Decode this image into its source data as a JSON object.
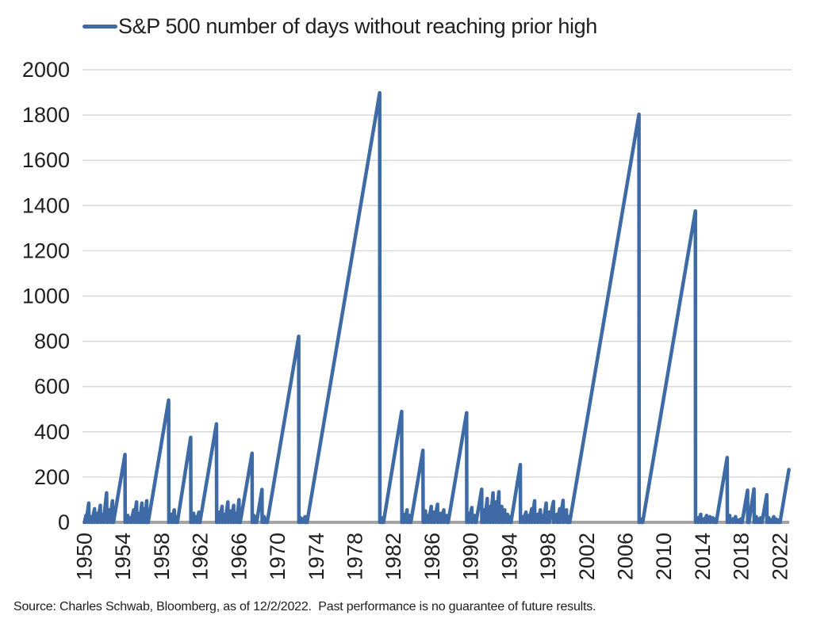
{
  "legend": {
    "label": "S&P 500 number of days without reaching prior high"
  },
  "footer": {
    "source": "Source: Charles Schwab, Bloomberg, as of 12/2/2022.  Past performance is no guarantee of future results."
  },
  "colors": {
    "line": "#3E6BA6",
    "gridline": "#D9D9D9",
    "baseline": "#A3A3A3",
    "text": "#1F1F1F"
  },
  "chart_data": {
    "type": "line",
    "title": "S&P 500 number of days without reaching prior high",
    "xlabel": "",
    "ylabel": "",
    "grid": "horizontal",
    "legend_position": "top-left",
    "x_range": [
      1949.8,
      2023.2
    ],
    "y_range": [
      0,
      2000
    ],
    "x_ticks": [
      1950,
      1954,
      1958,
      1962,
      1966,
      1970,
      1974,
      1978,
      1982,
      1986,
      1990,
      1994,
      1998,
      2002,
      2006,
      2010,
      2014,
      2018,
      2022
    ],
    "y_ticks": [
      0,
      200,
      400,
      600,
      800,
      1000,
      1200,
      1400,
      1600,
      1800,
      2000
    ],
    "series": [
      {
        "name": "S&P 500 number of days without reaching prior high",
        "points": [
          [
            1950.02,
            0
          ],
          [
            1950.15,
            30
          ],
          [
            1950.17,
            0
          ],
          [
            1950.45,
            85
          ],
          [
            1950.47,
            0
          ],
          [
            1950.75,
            25
          ],
          [
            1950.77,
            0
          ],
          [
            1951.05,
            60
          ],
          [
            1951.07,
            0
          ],
          [
            1951.35,
            40
          ],
          [
            1951.37,
            0
          ],
          [
            1951.65,
            75
          ],
          [
            1951.67,
            0
          ],
          [
            1951.95,
            35
          ],
          [
            1951.97,
            0
          ],
          [
            1952.3,
            130
          ],
          [
            1952.32,
            0
          ],
          [
            1952.6,
            55
          ],
          [
            1952.62,
            0
          ],
          [
            1952.9,
            95
          ],
          [
            1952.92,
            0
          ],
          [
            1953.0,
            0
          ],
          [
            1954.2,
            300
          ],
          [
            1954.22,
            0
          ],
          [
            1954.5,
            30
          ],
          [
            1954.52,
            0
          ],
          [
            1954.8,
            20
          ],
          [
            1954.82,
            0
          ],
          [
            1955.1,
            55
          ],
          [
            1955.12,
            0
          ],
          [
            1955.4,
            90
          ],
          [
            1955.42,
            0
          ],
          [
            1955.7,
            40
          ],
          [
            1955.72,
            0
          ],
          [
            1955.95,
            85
          ],
          [
            1955.97,
            0
          ],
          [
            1956.2,
            60
          ],
          [
            1956.22,
            0
          ],
          [
            1956.45,
            95
          ],
          [
            1956.47,
            0
          ],
          [
            1956.6,
            0
          ],
          [
            1958.72,
            540
          ],
          [
            1958.74,
            0
          ],
          [
            1959.0,
            35
          ],
          [
            1959.02,
            0
          ],
          [
            1959.3,
            55
          ],
          [
            1959.32,
            0
          ],
          [
            1959.55,
            25
          ],
          [
            1959.57,
            0
          ],
          [
            1959.62,
            0
          ],
          [
            1961.0,
            375
          ],
          [
            1961.02,
            0
          ],
          [
            1961.3,
            40
          ],
          [
            1961.32,
            0
          ],
          [
            1961.6,
            25
          ],
          [
            1961.62,
            0
          ],
          [
            1961.85,
            45
          ],
          [
            1961.87,
            0
          ],
          [
            1961.95,
            0
          ],
          [
            1963.67,
            435
          ],
          [
            1963.69,
            0
          ],
          [
            1963.95,
            45
          ],
          [
            1963.97,
            0
          ],
          [
            1964.25,
            70
          ],
          [
            1964.27,
            0
          ],
          [
            1964.55,
            35
          ],
          [
            1964.57,
            0
          ],
          [
            1964.85,
            90
          ],
          [
            1964.87,
            0
          ],
          [
            1965.15,
            50
          ],
          [
            1965.17,
            0
          ],
          [
            1965.45,
            75
          ],
          [
            1965.47,
            0
          ],
          [
            1965.75,
            40
          ],
          [
            1965.77,
            0
          ],
          [
            1966.0,
            100
          ],
          [
            1966.02,
            0
          ],
          [
            1966.12,
            0
          ],
          [
            1967.35,
            305
          ],
          [
            1967.37,
            0
          ],
          [
            1967.55,
            30
          ],
          [
            1967.57,
            0
          ],
          [
            1967.75,
            20
          ],
          [
            1967.77,
            0
          ],
          [
            1967.82,
            0
          ],
          [
            1968.38,
            145
          ],
          [
            1968.4,
            0
          ],
          [
            1968.6,
            25
          ],
          [
            1968.62,
            0
          ],
          [
            1968.85,
            15
          ],
          [
            1968.87,
            0
          ],
          [
            1968.92,
            0
          ],
          [
            1972.18,
            822
          ],
          [
            1972.2,
            0
          ],
          [
            1972.35,
            20
          ],
          [
            1972.37,
            0
          ],
          [
            1972.6,
            15
          ],
          [
            1972.62,
            0
          ],
          [
            1972.85,
            25
          ],
          [
            1972.87,
            0
          ],
          [
            1973.04,
            0
          ],
          [
            1980.56,
            1898
          ],
          [
            1980.58,
            0
          ],
          [
            1980.75,
            20
          ],
          [
            1980.77,
            0
          ],
          [
            1980.9,
            15
          ],
          [
            1980.92,
            0
          ],
          [
            1980.96,
            0
          ],
          [
            1982.84,
            490
          ],
          [
            1982.86,
            0
          ],
          [
            1983.1,
            35
          ],
          [
            1983.12,
            0
          ],
          [
            1983.4,
            55
          ],
          [
            1983.42,
            0
          ],
          [
            1983.65,
            30
          ],
          [
            1983.67,
            0
          ],
          [
            1983.78,
            0
          ],
          [
            1985.04,
            318
          ],
          [
            1985.06,
            0
          ],
          [
            1985.3,
            50
          ],
          [
            1985.32,
            0
          ],
          [
            1985.6,
            30
          ],
          [
            1985.62,
            0
          ],
          [
            1985.9,
            70
          ],
          [
            1985.92,
            0
          ],
          [
            1986.2,
            45
          ],
          [
            1986.22,
            0
          ],
          [
            1986.55,
            80
          ],
          [
            1986.57,
            0
          ],
          [
            1986.9,
            40
          ],
          [
            1986.92,
            0
          ],
          [
            1987.2,
            55
          ],
          [
            1987.22,
            0
          ],
          [
            1987.5,
            30
          ],
          [
            1987.52,
            0
          ],
          [
            1987.65,
            0
          ],
          [
            1989.56,
            484
          ],
          [
            1989.58,
            0
          ],
          [
            1989.8,
            40
          ],
          [
            1989.82,
            0
          ],
          [
            1990.1,
            65
          ],
          [
            1990.12,
            0
          ],
          [
            1990.4,
            30
          ],
          [
            1990.42,
            0
          ],
          [
            1990.54,
            0
          ],
          [
            1991.12,
            146
          ],
          [
            1991.14,
            0
          ],
          [
            1991.4,
            55
          ],
          [
            1991.42,
            0
          ],
          [
            1991.7,
            105
          ],
          [
            1991.72,
            0
          ],
          [
            1992.0,
            70
          ],
          [
            1992.02,
            0
          ],
          [
            1992.3,
            130
          ],
          [
            1992.32,
            0
          ],
          [
            1992.6,
            90
          ],
          [
            1992.62,
            0
          ],
          [
            1992.9,
            135
          ],
          [
            1992.92,
            0
          ],
          [
            1993.2,
            70
          ],
          [
            1993.22,
            0
          ],
          [
            1993.5,
            55
          ],
          [
            1993.52,
            0
          ],
          [
            1993.8,
            35
          ],
          [
            1993.82,
            0
          ],
          [
            1994.05,
            25
          ],
          [
            1994.07,
            0
          ],
          [
            1994.15,
            0
          ],
          [
            1995.12,
            255
          ],
          [
            1995.14,
            0
          ],
          [
            1995.4,
            25
          ],
          [
            1995.42,
            0
          ],
          [
            1995.7,
            45
          ],
          [
            1995.72,
            0
          ],
          [
            1996.0,
            30
          ],
          [
            1996.02,
            0
          ],
          [
            1996.3,
            60
          ],
          [
            1996.32,
            0
          ],
          [
            1996.6,
            95
          ],
          [
            1996.62,
            0
          ],
          [
            1996.9,
            35
          ],
          [
            1996.92,
            0
          ],
          [
            1997.2,
            55
          ],
          [
            1997.22,
            0
          ],
          [
            1997.5,
            30
          ],
          [
            1997.52,
            0
          ],
          [
            1997.8,
            85
          ],
          [
            1997.82,
            0
          ],
          [
            1998.1,
            45
          ],
          [
            1998.12,
            0
          ],
          [
            1998.55,
            92
          ],
          [
            1998.57,
            0
          ],
          [
            1998.9,
            35
          ],
          [
            1998.92,
            0
          ],
          [
            1999.2,
            60
          ],
          [
            1999.22,
            0
          ],
          [
            1999.55,
            97
          ],
          [
            1999.57,
            0
          ],
          [
            1999.9,
            55
          ],
          [
            1999.92,
            0
          ],
          [
            2000.1,
            25
          ],
          [
            2000.12,
            0
          ],
          [
            2000.23,
            0
          ],
          [
            2007.4,
            1803
          ],
          [
            2007.42,
            0
          ],
          [
            2007.55,
            15
          ],
          [
            2007.57,
            0
          ],
          [
            2007.7,
            10
          ],
          [
            2007.72,
            0
          ],
          [
            2007.78,
            0
          ],
          [
            2013.24,
            1376
          ],
          [
            2013.26,
            0
          ],
          [
            2013.5,
            20
          ],
          [
            2013.52,
            0
          ],
          [
            2013.8,
            35
          ],
          [
            2013.82,
            0
          ],
          [
            2014.1,
            15
          ],
          [
            2014.12,
            0
          ],
          [
            2014.4,
            30
          ],
          [
            2014.42,
            0
          ],
          [
            2014.75,
            25
          ],
          [
            2014.77,
            0
          ],
          [
            2015.05,
            20
          ],
          [
            2015.07,
            0
          ],
          [
            2015.3,
            15
          ],
          [
            2015.32,
            0
          ],
          [
            2015.4,
            0
          ],
          [
            2016.53,
            286
          ],
          [
            2016.55,
            0
          ],
          [
            2016.8,
            30
          ],
          [
            2016.82,
            0
          ],
          [
            2017.1,
            15
          ],
          [
            2017.12,
            0
          ],
          [
            2017.4,
            25
          ],
          [
            2017.42,
            0
          ],
          [
            2017.7,
            10
          ],
          [
            2017.72,
            0
          ],
          [
            2017.95,
            15
          ],
          [
            2017.97,
            0
          ],
          [
            2018.08,
            0
          ],
          [
            2018.64,
            142
          ],
          [
            2018.66,
            0
          ],
          [
            2018.72,
            10
          ],
          [
            2018.74,
            0
          ],
          [
            2018.78,
            0
          ],
          [
            2019.31,
            147
          ],
          [
            2019.33,
            0
          ],
          [
            2019.55,
            25
          ],
          [
            2019.57,
            0
          ],
          [
            2019.8,
            15
          ],
          [
            2019.82,
            0
          ],
          [
            2020.0,
            20
          ],
          [
            2020.02,
            0
          ],
          [
            2020.14,
            0
          ],
          [
            2020.63,
            122
          ],
          [
            2020.65,
            0
          ],
          [
            2020.85,
            20
          ],
          [
            2020.87,
            0
          ],
          [
            2021.1,
            10
          ],
          [
            2021.12,
            0
          ],
          [
            2021.35,
            25
          ],
          [
            2021.37,
            0
          ],
          [
            2021.6,
            15
          ],
          [
            2021.62,
            0
          ],
          [
            2021.85,
            10
          ],
          [
            2021.87,
            0
          ],
          [
            2022.0,
            0
          ],
          [
            2022.92,
            233
          ]
        ]
      }
    ]
  }
}
